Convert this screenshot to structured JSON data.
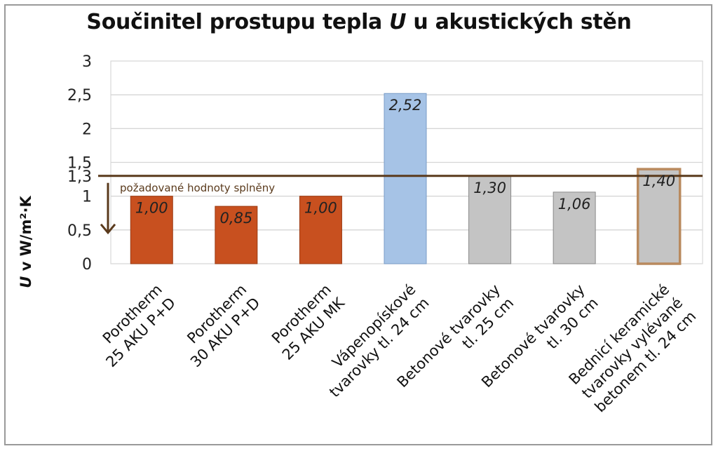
{
  "chart_data": {
    "type": "bar",
    "title_pre": "Součinitel prostupu tepla ",
    "title_u": "U",
    "title_post": " u akustických stěn",
    "ylabel_u": "U",
    "ylabel_rest": " v W/m²·K",
    "ylim": [
      0,
      3
    ],
    "yticks": [
      "0",
      "0,5",
      "1",
      "1,5",
      "2",
      "2,5",
      "3"
    ],
    "grid": true,
    "categories": [
      [
        "Porotherm",
        "25 AKU P+D"
      ],
      [
        "Porotherm",
        "30 AKU P+D"
      ],
      [
        "Porotherm",
        "25 AKU MK"
      ],
      [
        "Vápenopískové",
        "tvarovky  tl. 24 cm"
      ],
      [
        "Betonové tvarovky",
        "tl. 25 cm"
      ],
      [
        "Betonové tvarovky",
        "tl. 30 cm"
      ],
      [
        "Bednicí keramické",
        "tvarovky vylévané",
        "betonem tl. 24 cm"
      ]
    ],
    "values": [
      1.0,
      0.85,
      1.0,
      2.52,
      1.3,
      1.06,
      1.4
    ],
    "value_labels": [
      "1,00",
      "0,85",
      "1,00",
      "2,52",
      "1,30",
      "1,06",
      "1,40"
    ],
    "colors": [
      "#c8501f",
      "#c8501f",
      "#c8501f",
      "#a6c3e6",
      "#c4c4c4",
      "#c4c4c4",
      "#c4c4c4"
    ],
    "highlight_border_color": "#b98a5e",
    "reference_line": {
      "value": 1.3,
      "label": "1,3",
      "text": "požadované hodnoty splněny",
      "color": "#5a3a1c"
    }
  }
}
